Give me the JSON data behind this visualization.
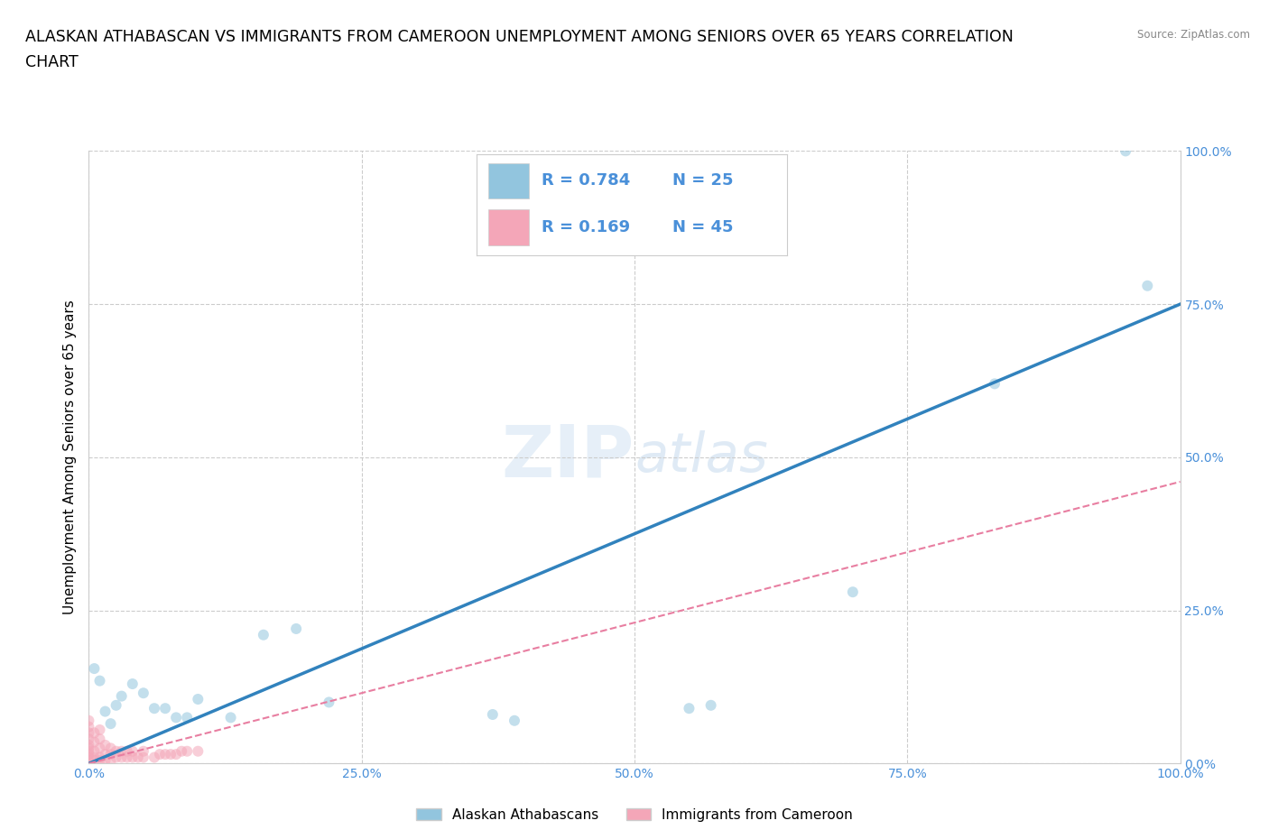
{
  "title_line1": "ALASKAN ATHABASCAN VS IMMIGRANTS FROM CAMEROON UNEMPLOYMENT AMONG SENIORS OVER 65 YEARS CORRELATION",
  "title_line2": "CHART",
  "source": "Source: ZipAtlas.com",
  "ylabel": "Unemployment Among Seniors over 65 years",
  "watermark_zip": "ZIP",
  "watermark_atlas": "atlas",
  "legend_r1": "0.784",
  "legend_n1": "25",
  "legend_r2": "0.169",
  "legend_n2": "45",
  "blue_color": "#92c5de",
  "pink_color": "#f4a6b8",
  "blue_line_color": "#3182bd",
  "pink_line_color": "#e87ea1",
  "axis_color": "#4a90d9",
  "xlim": [
    0.0,
    1.0
  ],
  "ylim": [
    0.0,
    1.0
  ],
  "tick_vals": [
    0.0,
    0.25,
    0.5,
    0.75,
    1.0
  ],
  "tick_labels": [
    "0.0%",
    "25.0%",
    "50.0%",
    "75.0%",
    "100.0%"
  ],
  "blue_x": [
    0.005,
    0.01,
    0.015,
    0.02,
    0.025,
    0.03,
    0.04,
    0.05,
    0.06,
    0.07,
    0.08,
    0.09,
    0.1,
    0.13,
    0.16,
    0.19,
    0.22,
    0.37,
    0.39,
    0.55,
    0.57,
    0.7,
    0.83,
    0.95,
    0.97
  ],
  "blue_y": [
    0.155,
    0.135,
    0.085,
    0.065,
    0.095,
    0.11,
    0.13,
    0.115,
    0.09,
    0.09,
    0.075,
    0.075,
    0.105,
    0.075,
    0.21,
    0.22,
    0.1,
    0.08,
    0.07,
    0.09,
    0.095,
    0.28,
    0.62,
    1.0,
    0.78
  ],
  "pink_x": [
    0.0,
    0.0,
    0.0,
    0.0,
    0.0,
    0.0,
    0.0,
    0.0,
    0.0,
    0.0,
    0.005,
    0.005,
    0.005,
    0.005,
    0.005,
    0.01,
    0.01,
    0.01,
    0.01,
    0.01,
    0.015,
    0.015,
    0.015,
    0.02,
    0.02,
    0.02,
    0.025,
    0.025,
    0.03,
    0.03,
    0.035,
    0.035,
    0.04,
    0.04,
    0.045,
    0.05,
    0.05,
    0.06,
    0.065,
    0.07,
    0.075,
    0.08,
    0.085,
    0.09,
    0.1
  ],
  "pink_y": [
    0.005,
    0.01,
    0.015,
    0.02,
    0.025,
    0.03,
    0.04,
    0.05,
    0.06,
    0.07,
    0.005,
    0.01,
    0.02,
    0.035,
    0.05,
    0.005,
    0.01,
    0.025,
    0.04,
    0.055,
    0.005,
    0.015,
    0.03,
    0.005,
    0.015,
    0.025,
    0.01,
    0.02,
    0.01,
    0.02,
    0.01,
    0.02,
    0.01,
    0.02,
    0.01,
    0.01,
    0.02,
    0.01,
    0.015,
    0.015,
    0.015,
    0.015,
    0.02,
    0.02,
    0.02
  ],
  "blue_trend_y_end": 0.75,
  "pink_trend_y_end": 0.46,
  "dot_size": 75,
  "alpha": 0.55,
  "grid_color": "#cccccc",
  "bg_color": "#ffffff",
  "title_fontsize": 12.5,
  "ylabel_fontsize": 11,
  "tick_fontsize": 10,
  "legend_fontsize": 13
}
